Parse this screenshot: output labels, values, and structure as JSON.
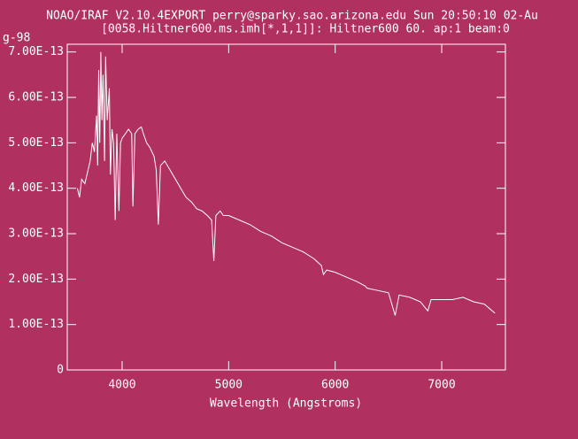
{
  "chart_data": {
    "type": "line",
    "title": "NOAO/IRAF V2.10.4EXPORT perry@sparky.sao.arizona.edu Sun 20:50:10 02-Au",
    "subtitle": "[0058.Hiltner600.ms.imh[*,1,1]]: Hiltner600 60. ap:1 beam:0",
    "y_label": "g-98",
    "x_label": "Wavelength (Angstroms)",
    "xlim": [
      3485,
      7598
    ],
    "ylim": [
      0,
      7.17e-13
    ],
    "xticks": [
      4000,
      5000,
      6000,
      7000
    ],
    "yticks": [
      0,
      {
        "value": 1e-13,
        "label": "1.00E-13"
      },
      {
        "value": 2e-13,
        "label": "2.00E-13"
      },
      {
        "value": 3e-13,
        "label": "3.00E-13"
      },
      {
        "value": 4e-13,
        "label": "4.00E-13"
      },
      {
        "value": 5e-13,
        "label": "5.00E-13"
      },
      {
        "value": 6e-13,
        "label": "6.00E-13"
      },
      {
        "value": 7e-13,
        "label": "7.00E-13"
      }
    ],
    "color": "#ffffff",
    "x": [
      3580,
      3600,
      3620,
      3650,
      3680,
      3700,
      3720,
      3740,
      3760,
      3770,
      3780,
      3790,
      3800,
      3810,
      3820,
      3835,
      3845,
      3860,
      3880,
      3890,
      3905,
      3920,
      3935,
      3950,
      3970,
      3985,
      4000,
      4030,
      4060,
      4090,
      4101,
      4120,
      4150,
      4180,
      4200,
      4230,
      4260,
      4300,
      4320,
      4340,
      4360,
      4400,
      4450,
      4500,
      4550,
      4600,
      4650,
      4700,
      4750,
      4800,
      4840,
      4861,
      4880,
      4920,
      4950,
      5000,
      5100,
      5200,
      5300,
      5400,
      5500,
      5600,
      5700,
      5800,
      5870,
      5890,
      5920,
      6000,
      6100,
      6200,
      6280,
      6300,
      6400,
      6500,
      6563,
      6600,
      6700,
      6800,
      6870,
      6900,
      7000,
      7100,
      7200,
      7300,
      7400,
      7500
    ],
    "values": [
      4e-13,
      3.8e-13,
      4.2e-13,
      4.1e-13,
      4.4e-13,
      4.6e-13,
      5e-13,
      4.8e-13,
      5.6e-13,
      4.5e-13,
      6.6e-13,
      5e-13,
      7e-13,
      5.5e-13,
      6.5e-13,
      4.6e-13,
      6.9e-13,
      5.5e-13,
      6.2e-13,
      4.3e-13,
      5.3e-13,
      5e-13,
      3.3e-13,
      5.2e-13,
      3.5e-13,
      5e-13,
      5.1e-13,
      5.2e-13,
      5.3e-13,
      5.2e-13,
      3.6e-13,
      5.2e-13,
      5.3e-13,
      5.35e-13,
      5.2e-13,
      5e-13,
      4.9e-13,
      4.7e-13,
      4.4e-13,
      3.2e-13,
      4.5e-13,
      4.6e-13,
      4.4e-13,
      4.2e-13,
      4e-13,
      3.8e-13,
      3.7e-13,
      3.55e-13,
      3.5e-13,
      3.4e-13,
      3.3e-13,
      2.4e-13,
      3.4e-13,
      3.5e-13,
      3.4e-13,
      3.4e-13,
      3.3e-13,
      3.2e-13,
      3.05e-13,
      2.95e-13,
      2.8e-13,
      2.7e-13,
      2.6e-13,
      2.45e-13,
      2.3e-13,
      2.1e-13,
      2.2e-13,
      2.15e-13,
      2.05e-13,
      1.95e-13,
      1.85e-13,
      1.8e-13,
      1.75e-13,
      1.7e-13,
      1.2e-13,
      1.65e-13,
      1.6e-13,
      1.5e-13,
      1.3e-13,
      1.55e-13,
      1.55e-13,
      1.55e-13,
      1.6e-13,
      1.5e-13,
      1.45e-13,
      1.25e-13
    ]
  }
}
